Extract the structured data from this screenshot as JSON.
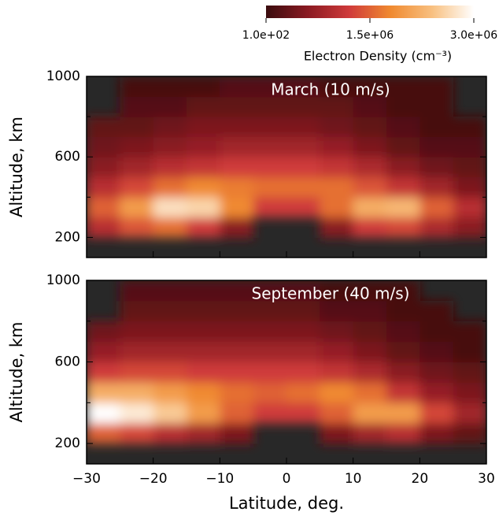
{
  "chart_data": {
    "type": "heatmap",
    "xlabel": "Latitude, deg.",
    "xlim": [
      -30,
      30
    ],
    "xticks": [
      {
        "value": -30,
        "label": "−30"
      },
      {
        "value": -20,
        "label": "−20"
      },
      {
        "value": -10,
        "label": "−10"
      },
      0,
      10,
      20,
      30
    ],
    "ylim": [
      100,
      1000
    ],
    "yticks": [
      200,
      600,
      1000
    ],
    "minor_yticks": [
      400,
      800
    ],
    "x_edges": [
      -30,
      -25,
      -20,
      -15,
      -10,
      -5,
      0,
      5,
      10,
      15,
      20,
      25,
      30
    ],
    "y_edges": [
      100,
      200,
      300,
      400,
      500,
      600,
      700,
      800,
      900,
      1000
    ],
    "colorbar": {
      "label": "Electron Density (cm⁻³)",
      "lim": [
        100,
        3000000
      ],
      "ticks": [
        {
          "value": 100,
          "label": "1.0e+02"
        },
        {
          "value": 1500000,
          "label": "1.5e+06"
        },
        {
          "value": 3000000,
          "label": "3.0e+06"
        }
      ],
      "colormap": [
        "#3a0c0e",
        "#8a1a22",
        "#cf3a3a",
        "#f08a30",
        "#f8c080",
        "#ffffff"
      ]
    },
    "panels": [
      {
        "title": "March (10 m/s)",
        "ylabel": "Altitude, km",
        "z": [
          [
            null,
            null,
            null,
            null,
            null,
            null,
            null,
            null,
            null,
            null,
            null,
            null
          ],
          [
            1000000,
            1400000,
            1600000,
            1200000,
            600000,
            null,
            null,
            600000,
            1200000,
            1300000,
            900000,
            600000
          ],
          [
            1500000,
            2000000,
            2700000,
            2600000,
            1800000,
            1200000,
            1200000,
            1600000,
            2200000,
            2300000,
            1500000,
            1000000
          ],
          [
            1000000,
            1300000,
            1600000,
            1800000,
            1700000,
            1600000,
            1600000,
            1600000,
            1400000,
            1100000,
            800000,
            500000
          ],
          [
            600000,
            800000,
            1000000,
            1100000,
            1200000,
            1200000,
            1200000,
            1100000,
            900000,
            600000,
            400000,
            300000
          ],
          [
            400000,
            500000,
            600000,
            700000,
            800000,
            800000,
            800000,
            700000,
            500000,
            300000,
            200000,
            200000
          ],
          [
            300000,
            300000,
            400000,
            500000,
            500000,
            500000,
            500000,
            400000,
            300000,
            200000,
            100000,
            100000
          ],
          [
            null,
            200000,
            200000,
            300000,
            300000,
            300000,
            300000,
            300000,
            200000,
            100000,
            100000,
            null
          ],
          [
            null,
            100000,
            100000,
            100000,
            200000,
            200000,
            200000,
            100000,
            100000,
            100000,
            100000,
            null
          ]
        ]
      },
      {
        "title": "September (40 m/s)",
        "ylabel": "Altitude, km",
        "z": [
          [
            null,
            null,
            null,
            null,
            null,
            null,
            null,
            null,
            null,
            null,
            null,
            null
          ],
          [
            1500000,
            1300000,
            1000000,
            800000,
            500000,
            null,
            null,
            500000,
            800000,
            1000000,
            500000,
            300000
          ],
          [
            3000000,
            2800000,
            2500000,
            2000000,
            1500000,
            1200000,
            1200000,
            1500000,
            2000000,
            2000000,
            1300000,
            800000
          ],
          [
            2200000,
            2200000,
            2000000,
            1800000,
            1600000,
            1500000,
            1600000,
            1800000,
            1600000,
            1100000,
            700000,
            500000
          ],
          [
            1200000,
            1300000,
            1300000,
            1200000,
            1200000,
            1200000,
            1200000,
            1100000,
            900000,
            600000,
            400000,
            300000
          ],
          [
            700000,
            800000,
            800000,
            800000,
            800000,
            800000,
            800000,
            700000,
            500000,
            300000,
            200000,
            100000
          ],
          [
            400000,
            500000,
            500000,
            500000,
            500000,
            500000,
            500000,
            400000,
            300000,
            200000,
            100000,
            100000
          ],
          [
            null,
            300000,
            300000,
            300000,
            300000,
            300000,
            300000,
            200000,
            200000,
            100000,
            100000,
            null
          ],
          [
            null,
            200000,
            200000,
            200000,
            200000,
            200000,
            200000,
            100000,
            100000,
            100000,
            null,
            null
          ]
        ]
      }
    ]
  }
}
